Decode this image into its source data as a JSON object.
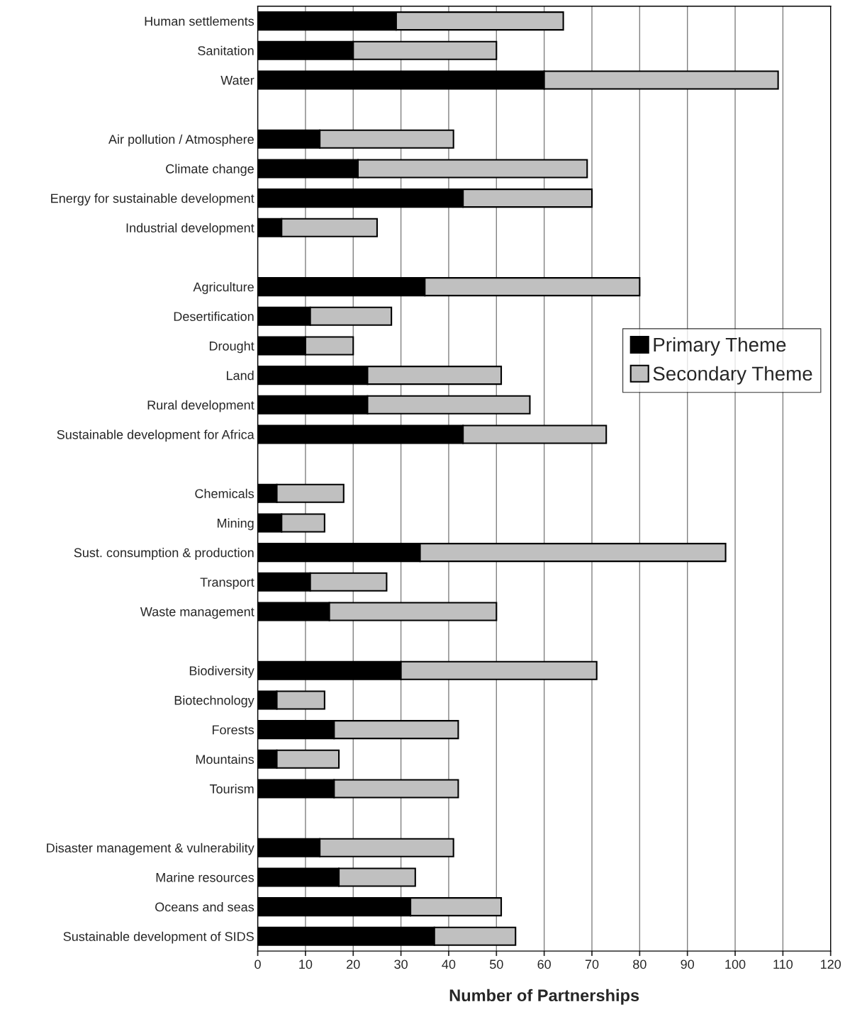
{
  "chart_data": {
    "type": "bar",
    "orientation": "horizontal",
    "stacked": true,
    "xlabel": "Number of Partnerships",
    "categories": [
      "Human settlements",
      "Sanitation",
      "Water",
      null,
      "Air pollution / Atmosphere",
      "Climate change",
      "Energy for sustainable development",
      "Industrial development",
      null,
      "Agriculture",
      "Desertification",
      "Drought",
      "Land",
      "Rural development",
      "Sustainable development for Africa",
      null,
      "Chemicals",
      "Mining",
      "Sust. consumption & production",
      "Transport",
      "Waste management",
      null,
      "Biodiversity",
      "Biotechnology",
      "Forests",
      "Mountains",
      "Tourism",
      null,
      "Disaster management & vulnerability",
      "Marine resources",
      "Oceans and seas",
      "Sustainable development of SIDS"
    ],
    "series": [
      {
        "name": "Primary Theme",
        "color": "#000000",
        "values": [
          29,
          20,
          60,
          null,
          13,
          21,
          43,
          5,
          null,
          35,
          11,
          10,
          23,
          23,
          43,
          null,
          4,
          5,
          34,
          11,
          15,
          null,
          30,
          4,
          16,
          4,
          16,
          null,
          13,
          17,
          32,
          37
        ]
      },
      {
        "name": "Secondary Theme",
        "color": "#c0c0c0",
        "values": [
          35,
          30,
          49,
          null,
          28,
          48,
          27,
          20,
          null,
          45,
          17,
          10,
          28,
          34,
          30,
          null,
          14,
          9,
          64,
          16,
          35,
          null,
          41,
          10,
          26,
          13,
          26,
          null,
          28,
          16,
          19,
          17
        ]
      }
    ],
    "xlim": [
      0,
      120
    ],
    "xticks": [
      0,
      10,
      20,
      30,
      40,
      50,
      60,
      70,
      80,
      90,
      100,
      110,
      120
    ],
    "grid": "x",
    "legend": "right"
  }
}
